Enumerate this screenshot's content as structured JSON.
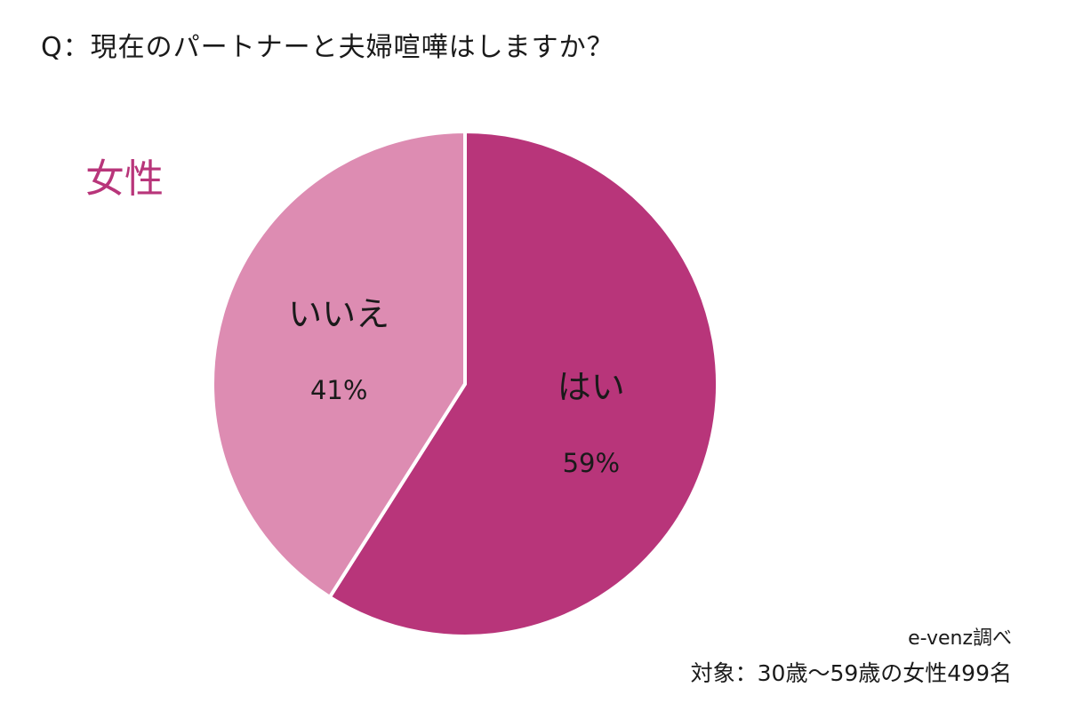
{
  "question": "Q：現在のパートナーと夫婦喧嘩はしますか？",
  "subject": "女性",
  "source": "e-venz調べ",
  "target": "対象：30歳〜59歳の女性499名",
  "colors": {
    "subject": "#B8357A",
    "yes": "#B8357A",
    "no": "#DD8CB2",
    "separator": "#ffffff"
  },
  "chart_data": {
    "type": "pie",
    "title": "Q：現在のパートナーと夫婦喧嘩はしますか？",
    "start": "12 o'clock",
    "direction": "clockwise",
    "slices": [
      {
        "label": "はい",
        "value": 59,
        "display": "59%",
        "color": "#B8357A"
      },
      {
        "label": "いいえ",
        "value": 41,
        "display": "41%",
        "color": "#DD8CB2"
      }
    ]
  }
}
